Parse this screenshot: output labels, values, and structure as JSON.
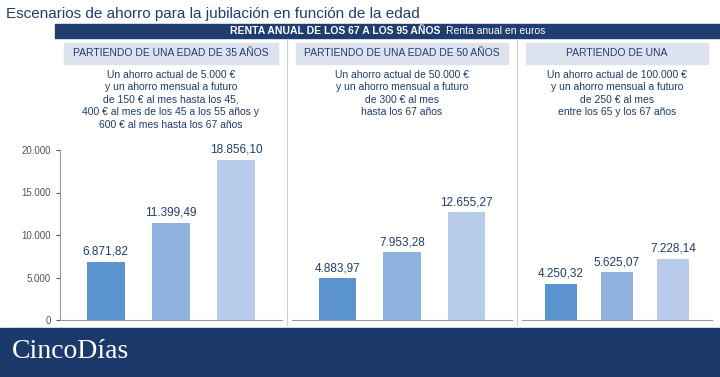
{
  "title": "Escenarios de ahorro para la jubilación en función de la edad",
  "header": "RENTA ANUAL DE LOS 67 A LOS 95 AÑOS",
  "header_note": "Renta anual en euros",
  "footer": "CincoDías",
  "chart_data": [
    {
      "type": "bar",
      "subtitle": "PARTIENDO DE UNA EDAD DE 35 AÑOS",
      "description": "Un ahorro actual de 5.000 €\ny un ahorro mensual a futuro\nde 150 € al mes hasta los 45,\n400 € al mes de los 45 a los 55 años y\n600 € al mes hasta los 67 años",
      "categories": [
        null,
        null,
        null
      ],
      "values": [
        6871.82,
        11399.49,
        18856.1
      ],
      "value_labels": [
        "6.871,82",
        "11.399,49",
        "18.856,10"
      ],
      "colors": [
        "#5b93cf",
        "#8fb2de",
        "#b8cbea"
      ],
      "data_labels": true,
      "tick_labels": "y",
      "ylim": [
        0,
        20000
      ],
      "yticks": [
        0,
        {
          "value": 5000,
          "label": "5.000"
        },
        {
          "value": 10000,
          "label": "10.000"
        },
        {
          "value": 15000,
          "label": "15.000"
        },
        {
          "value": 20000,
          "label": "20.000"
        }
      ]
    },
    {
      "type": "bar",
      "subtitle": "PARTIENDO DE UNA EDAD DE 50 AÑOS",
      "description": "Un ahorro actual de 50.000 €\ny un ahorro mensual a futuro\nde 300 € al mes\nhasta los 67 años",
      "categories": [
        null,
        null,
        null
      ],
      "values": [
        4883.97,
        7953.28,
        12655.27
      ],
      "value_labels": [
        "4.883,97",
        "7.953,28",
        "12.655,27"
      ],
      "colors": [
        "#5b93cf",
        "#8fb2de",
        "#b8cbea"
      ],
      "data_labels": true,
      "tick_labels": false,
      "ylim": [
        0,
        20000
      ]
    },
    {
      "type": "bar",
      "subtitle": "PARTIENDO DE UNA",
      "description": "Un ahorro actual de 100.000 €\ny un ahorro mensual a futuro\nde 250 € al mes\nentre los 65 y los 67 años",
      "categories": [
        null,
        null,
        null
      ],
      "values": [
        4250.32,
        5625.07,
        7228.14
      ],
      "value_labels": [
        "4.250,32",
        "5.625,07",
        "7.228,14"
      ],
      "colors": [
        "#5b93cf",
        "#8fb2de",
        "#b8cbea"
      ],
      "data_labels": true,
      "tick_labels": false,
      "ylim": [
        0,
        20000
      ]
    }
  ]
}
